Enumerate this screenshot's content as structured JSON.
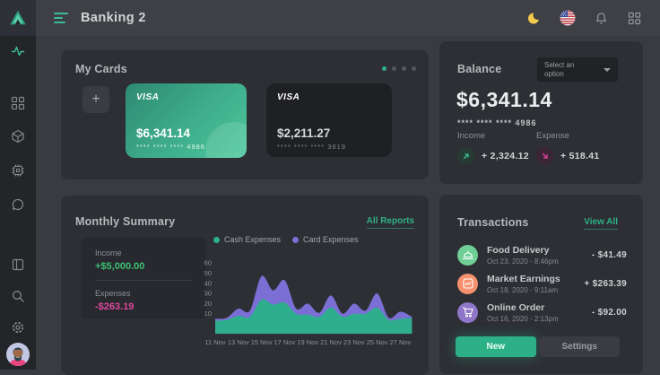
{
  "topbar": {
    "title": "Banking 2",
    "icons": [
      "moon-icon",
      "us-flag-icon",
      "bell-icon",
      "apps-grid-icon"
    ]
  },
  "sidebar": {
    "icons_top": [
      "logo-triangle",
      "activity-icon",
      "dashboard-grid-icon",
      "cube-icon",
      "cpu-icon",
      "chat-icon"
    ],
    "icons_bottom": [
      "layout-icon",
      "search-icon",
      "gear-icon",
      "user-avatar"
    ]
  },
  "my_cards": {
    "title": "My Cards",
    "add_label": "+",
    "dots": {
      "count": 4,
      "active": 0
    },
    "cards": [
      {
        "brand": "VISA",
        "amount": "$6,341.14",
        "mask": "**** **** ****  4986"
      },
      {
        "brand": "VISA",
        "amount": "$2,211.27",
        "mask": "**** **** ****  3619"
      }
    ]
  },
  "balance": {
    "title": "Balance",
    "dropdown_label": "Select an option",
    "amount": "$6,341.14",
    "card_mask": "**** **** **** 4986",
    "income_label": "Income",
    "income_value": "+ 2,324.12",
    "expense_label": "Expense",
    "expense_value": "+ 518.41"
  },
  "monthly": {
    "title": "Monthly Summary",
    "link": "All Reports",
    "summary": {
      "income_label": "Income",
      "income_value": "+$5,000.00",
      "expenses_label": "Expenses",
      "expenses_value": "-$263.19"
    }
  },
  "chart_data": {
    "type": "area",
    "x": [
      "11 Nov",
      "12 Nov",
      "13 Nov",
      "14 Nov",
      "15 Nov",
      "16 Nov",
      "17 Nov",
      "18 Nov",
      "19 Nov",
      "20 Nov",
      "21 Nov",
      "22 Nov",
      "23 Nov",
      "24 Nov",
      "25 Nov",
      "26 Nov",
      "27 Nov",
      "28 Nov"
    ],
    "x_tick_labels": [
      "11 Nov",
      "13 Nov",
      "15 Nov",
      "17 Nov",
      "19 Nov",
      "21 Nov",
      "23 Nov",
      "25 Nov",
      "27 Nov"
    ],
    "series": [
      {
        "name": "Cash Expenses",
        "color": "#2fae8e",
        "values": [
          3,
          4,
          8,
          7,
          24,
          19,
          21,
          10,
          9,
          7,
          16,
          7,
          10,
          10,
          16,
          4,
          5,
          6
        ]
      },
      {
        "name": "Card Expenses",
        "color": "#7b6fd6",
        "values": [
          5,
          6,
          15,
          13,
          47,
          33,
          43,
          15,
          20,
          11,
          28,
          10,
          20,
          13,
          30,
          6,
          12,
          7
        ]
      }
    ],
    "ylim": [
      0,
      60
    ],
    "yticks": [
      10,
      20,
      30,
      40,
      50,
      60
    ],
    "legend_position": "top",
    "grid": false
  },
  "transactions": {
    "title": "Transactions",
    "link": "View All",
    "items": [
      {
        "name": "Food Delivery",
        "date": "Oct 23, 2020 - 8:46pm",
        "amount": "- $41.49",
        "icon": "food-cloche-icon",
        "color": "#6fcf97"
      },
      {
        "name": "Market Earnings",
        "date": "Oct 18, 2020 - 9:11am",
        "amount": "+ $263.39",
        "icon": "chart-image-icon",
        "color": "#f5916e"
      },
      {
        "name": "Online Order",
        "date": "Oct 16, 2020 - 2:13pm",
        "amount": "- $92.00",
        "icon": "shopping-cart-icon",
        "color": "#8f76c9"
      }
    ],
    "new_label": "New",
    "settings_label": "Settings"
  },
  "colors": {
    "accent_green": "#2eb086",
    "income_green": "#3fbf74",
    "expense_pink": "#e0479e",
    "chart_cash": "#2fae8e",
    "chart_card": "#7b6fd6",
    "moon_yellow": "#f2c94c"
  }
}
